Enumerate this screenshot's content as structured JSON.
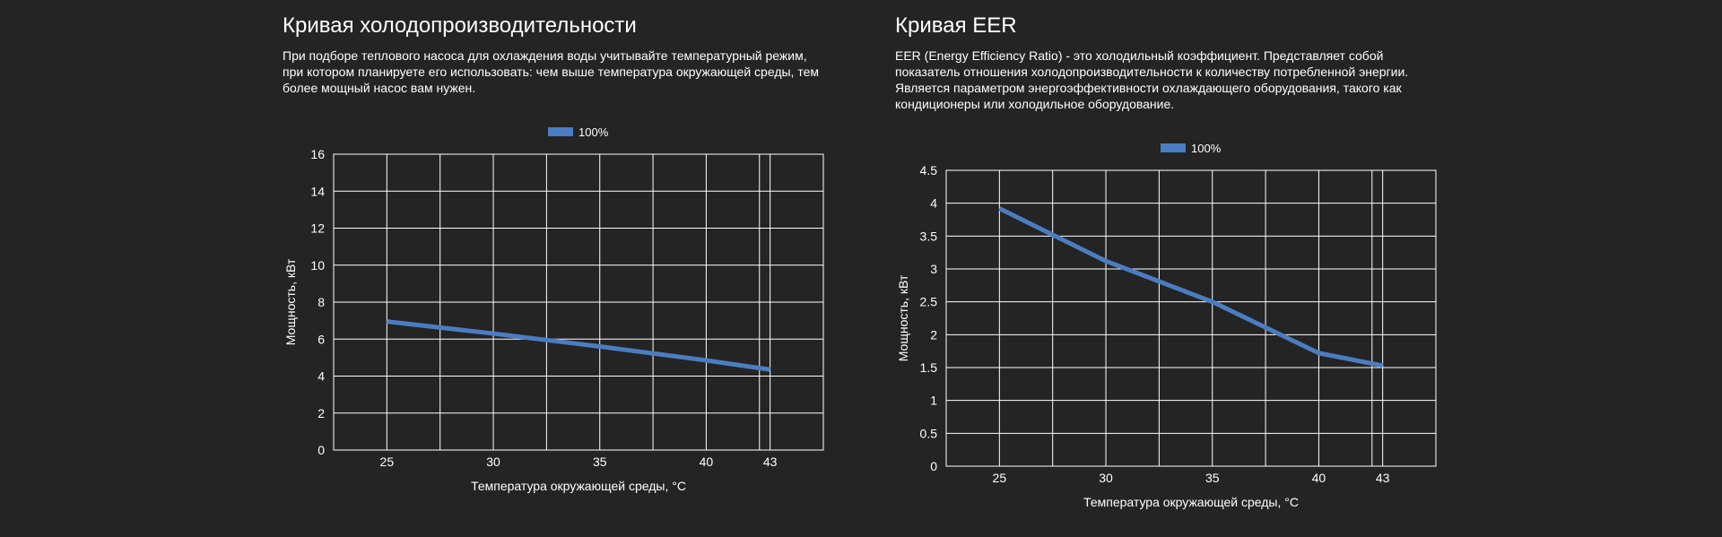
{
  "panels": [
    {
      "title": "Кривая холодопроизводительности",
      "description": "При подборе теплового насоса для охлаждения воды учитывайте температурный режим, при котором планируете его использовать: чем выше температура окружающей среды, тем более мощный насос вам нужен."
    },
    {
      "title": "Кривая EER",
      "description": "EER (Energy Efficiency Ratio) - это холодильный коэффициент. Представляет собой показатель отношения холодопроизводительности к количеству потребленной энергии. Является параметром энергоэффективности охлаждающего оборудования, такого как кондиционеры или холодильное оборудование."
    }
  ],
  "chart_data": [
    {
      "type": "line",
      "x": [
        25,
        30,
        35,
        40,
        43
      ],
      "series": [
        {
          "name": "100%",
          "values": [
            6.95,
            6.3,
            5.6,
            4.85,
            4.35
          ],
          "color": "#4a7dc1"
        }
      ],
      "xlabel": "Температура окружающей среды, °C",
      "ylabel": "Мощность, кВт",
      "xticks": [
        "25",
        "30",
        "35",
        "40",
        "43"
      ],
      "yticks": [
        "0",
        "2",
        "4",
        "6",
        "8",
        "10",
        "12",
        "14",
        "16"
      ],
      "ylim": [
        0,
        16
      ],
      "xlim": [
        22.5,
        45.5
      ],
      "grid": true,
      "legend": "top-center"
    },
    {
      "type": "line",
      "x": [
        25,
        30,
        35,
        40,
        43
      ],
      "series": [
        {
          "name": "100%",
          "values": [
            3.92,
            3.12,
            2.5,
            1.72,
            1.53
          ],
          "color": "#4a7dc1"
        }
      ],
      "xlabel": "Температура окружающей среды, °C",
      "ylabel": "Мощность, кВт",
      "xticks": [
        "25",
        "30",
        "35",
        "40",
        "43"
      ],
      "yticks": [
        "0",
        "0.5",
        "1",
        "1.5",
        "2",
        "2.5",
        "3",
        "3.5",
        "4",
        "4.5"
      ],
      "ylim": [
        0,
        4.5
      ],
      "xlim": [
        22.5,
        45.5
      ],
      "grid": true,
      "legend": "top-center"
    }
  ]
}
